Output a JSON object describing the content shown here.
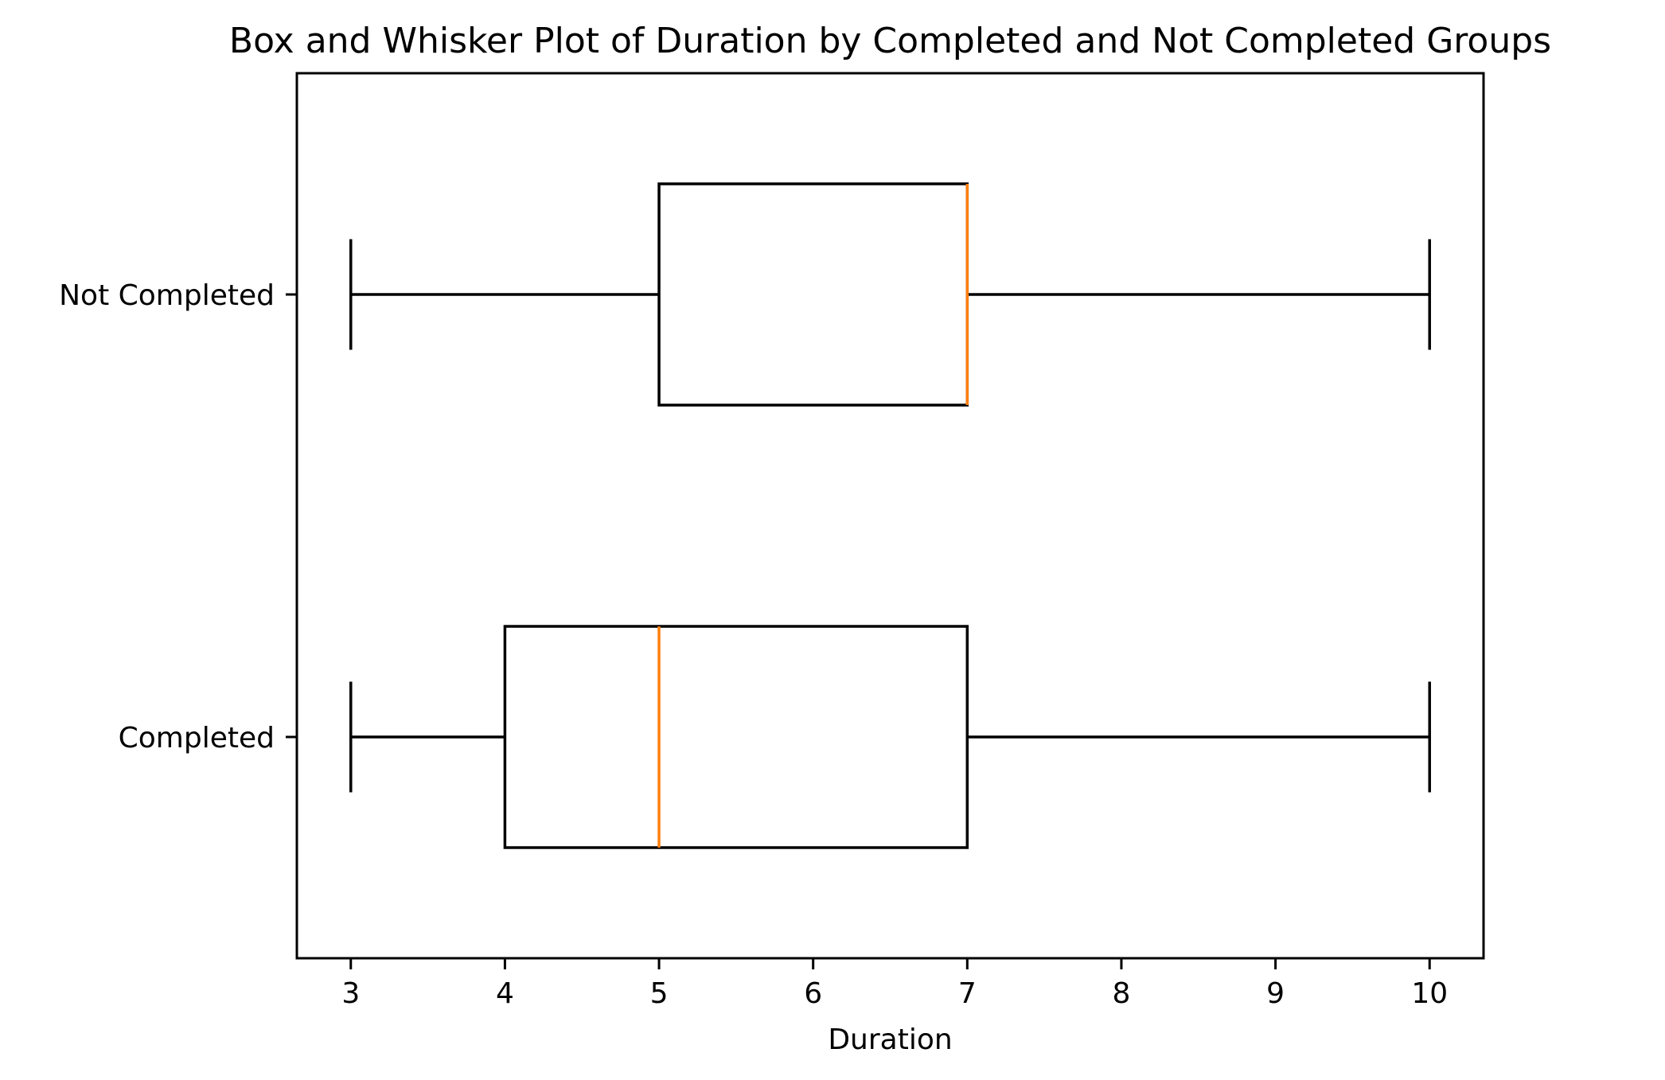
{
  "chart_data": {
    "type": "boxplot",
    "orientation": "horizontal",
    "title": "Box and Whisker Plot of Duration by Completed and Not Completed Groups",
    "xlabel": "Duration",
    "ylabel": "",
    "xlim": [
      2.65,
      10.35
    ],
    "xticks": [
      3,
      4,
      5,
      6,
      7,
      8,
      9,
      10
    ],
    "xtick_labels": [
      "3",
      "4",
      "5",
      "6",
      "7",
      "8",
      "9",
      "10"
    ],
    "grid": false,
    "categories": [
      "Completed",
      "Not Completed"
    ],
    "series": [
      {
        "name": "Completed",
        "min": 3,
        "q1": 4,
        "median": 5,
        "q3": 7,
        "max": 10
      },
      {
        "name": "Not Completed",
        "min": 3,
        "q1": 5,
        "median": 7,
        "q3": 7,
        "max": 10
      }
    ],
    "colors": {
      "box": "#000000",
      "median": "#ff7f0e"
    }
  }
}
